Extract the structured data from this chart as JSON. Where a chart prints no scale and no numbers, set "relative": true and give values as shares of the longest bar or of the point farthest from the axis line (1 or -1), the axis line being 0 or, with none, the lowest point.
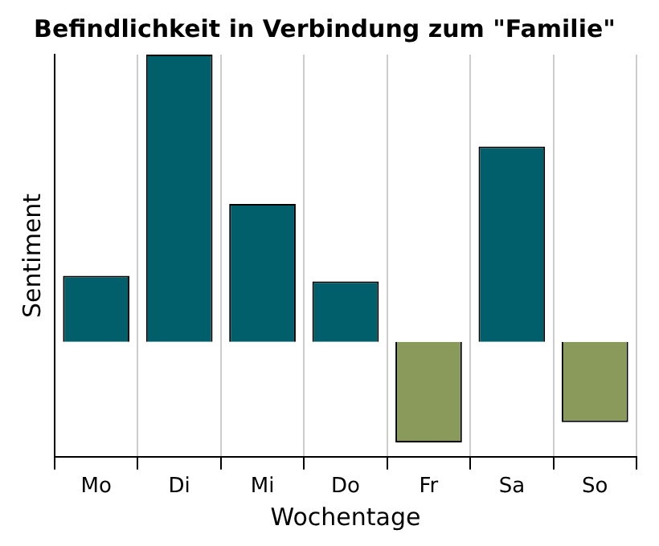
{
  "chart_data": {
    "type": "bar",
    "title": "Befindlichkeit in Verbindung zum \"Familie\"",
    "xlabel": "Wochentage",
    "ylabel": "Sentiment",
    "relative": true,
    "grid": "x",
    "legend": false,
    "categories": [
      "Mo",
      "Di",
      "Mi",
      "Do",
      "Fr",
      "Sa",
      "So"
    ],
    "values": [
      0.23,
      1,
      0.48,
      0.21,
      -0.35,
      0.68,
      -0.28
    ],
    "colors": [
      "#005f6b",
      "#005f6b",
      "#005f6b",
      "#005f6b",
      "#8a9a5b",
      "#005f6b",
      "#8a9a5b"
    ]
  }
}
